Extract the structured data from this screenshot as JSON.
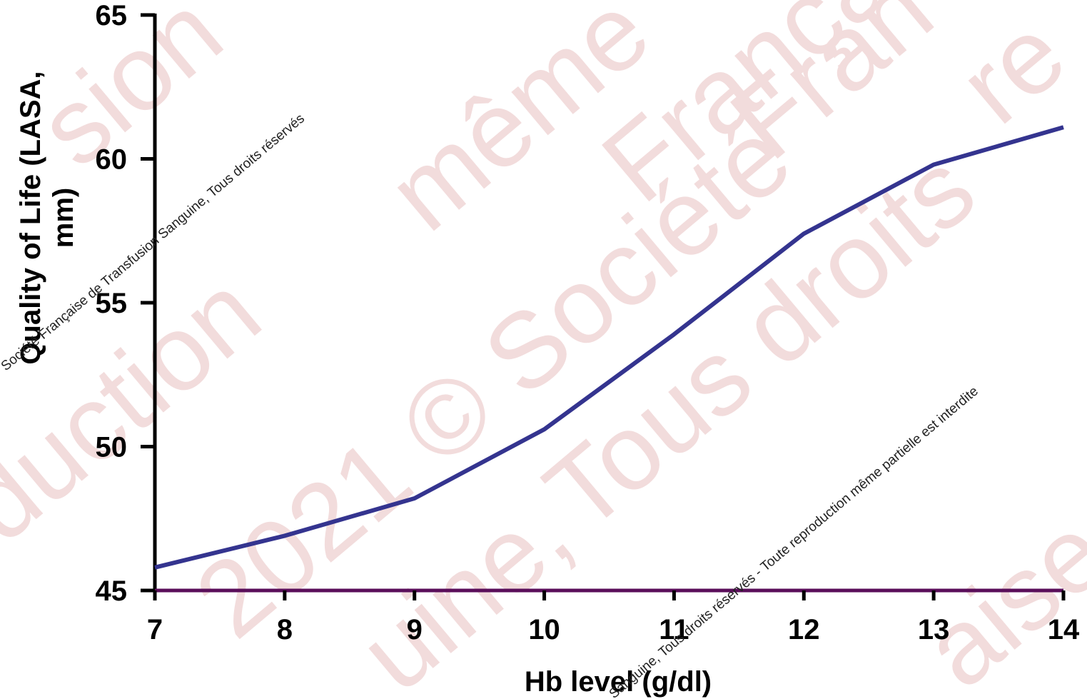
{
  "chart_data": {
    "type": "line",
    "xlabel": "Hb level (g/dl)",
    "ylabel_lines": [
      "Quality of Life (LASA,",
      "mm)"
    ],
    "x": [
      7,
      8,
      9,
      10,
      11,
      12,
      13,
      14
    ],
    "y": [
      45.8,
      46.9,
      48.2,
      50.6,
      53.9,
      57.4,
      59.8,
      61.1
    ],
    "xlim": [
      7,
      14
    ],
    "ylim": [
      45,
      65
    ],
    "x_ticks": [
      "7",
      "8",
      "9",
      "10",
      "11",
      "12",
      "13",
      "14"
    ],
    "y_ticks": [
      "45",
      "50",
      "55",
      "60",
      "65"
    ],
    "grid": false,
    "legend": "none"
  },
  "colors": {
    "line": "#34348f",
    "x_axis": "#5a0e5a",
    "y_axis": "#000000",
    "watermark": "#f2dcdc"
  },
  "watermark": {
    "big": [
      "oduction",
      "2021 © Société",
      "sion",
      "même",
      "Tous droits",
      "Française de",
      "uine,",
      "Fran",
      "re",
      "aise de"
    ],
    "small": [
      "Société Française de Transfusion Sanguine, Tous droits réservés",
      "Sanguine, Tous droits réservés - Toute reproduction même partielle est interdite"
    ]
  }
}
